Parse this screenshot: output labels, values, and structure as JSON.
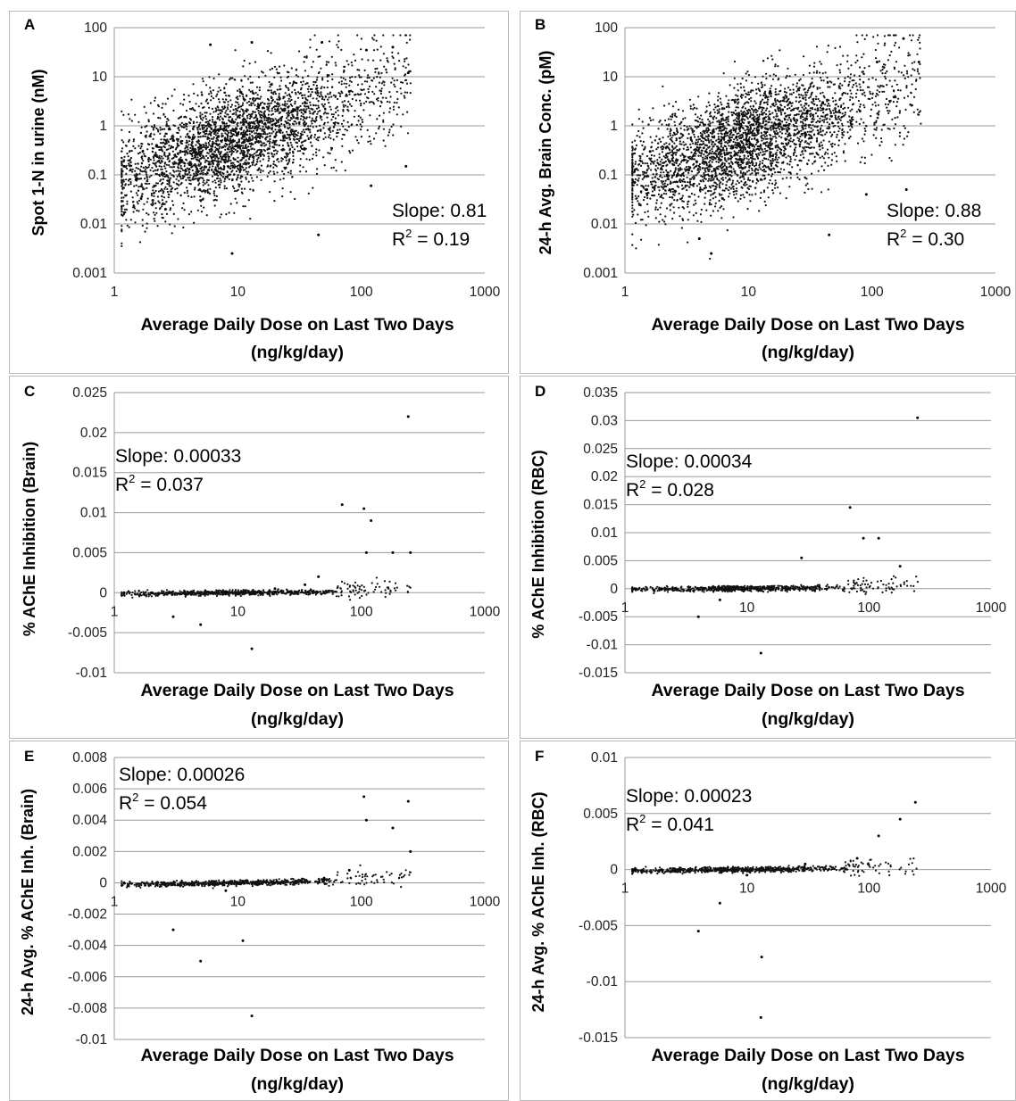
{
  "panels": [
    {
      "letter": "A",
      "ylabel": "Spot 1-N in urine (nM)",
      "xlabel_line1": "Average Daily Dose on Last Two Days",
      "xlabel_line2": "(ng/kg/day)",
      "slope": "Slope: 0.81",
      "r2_prefix": "R",
      "r2_sup": "2",
      "r2_value": " = 0.19",
      "yticks": [
        "100",
        "10",
        "1",
        "0.1",
        "0.01",
        "0.001"
      ],
      "xticks": [
        "1",
        "10",
        "100",
        "1000"
      ]
    },
    {
      "letter": "B",
      "ylabel": "24-h Avg. Brain Conc. (pM)",
      "xlabel_line1": "Average Daily Dose on Last Two Days",
      "xlabel_line2": "(ng/kg/day)",
      "slope": "Slope: 0.88",
      "r2_prefix": "R",
      "r2_sup": "2",
      "r2_value": " = 0.30",
      "yticks": [
        "100",
        "10",
        "1",
        "0.1",
        "0.01",
        "0.001"
      ],
      "xticks": [
        "1",
        "10",
        "100",
        "1000"
      ]
    },
    {
      "letter": "C",
      "ylabel": "% AChE Inhibition (Brain)",
      "xlabel_line1": "Average Daily Dose on Last Two Days",
      "xlabel_line2": "(ng/kg/day)",
      "slope": "Slope: 0.00033",
      "r2_prefix": "R",
      "r2_sup": "2",
      "r2_value": " = 0.037",
      "yticks": [
        "0.025",
        "0.02",
        "0.015",
        "0.01",
        "0.005",
        "0",
        "-0.005",
        "-0.01"
      ],
      "xticks": [
        "1",
        "10",
        "100",
        "1000"
      ]
    },
    {
      "letter": "D",
      "ylabel": "% AChE Inhibition (RBC)",
      "xlabel_line1": "Average Daily Dose on Last Two Days",
      "xlabel_line2": "(ng/kg/day)",
      "slope": "Slope: 0.00034",
      "r2_prefix": "R",
      "r2_sup": "2",
      "r2_value": " = 0.028",
      "yticks": [
        "0.035",
        "0.03",
        "0.025",
        "0.02",
        "0.015",
        "0.01",
        "0.005",
        "0",
        "-0.005",
        "-0.01",
        "-0.015"
      ],
      "xticks": [
        "1",
        "10",
        "100",
        "1000"
      ]
    },
    {
      "letter": "E",
      "ylabel": "24-h Avg. % AChE Inh. (Brain)",
      "xlabel_line1": "Average Daily Dose on Last Two Days",
      "xlabel_line2": "(ng/kg/day)",
      "slope": "Slope: 0.00026",
      "r2_prefix": "R",
      "r2_sup": "2",
      "r2_value": " = 0.054",
      "yticks": [
        "0.008",
        "0.006",
        "0.004",
        "0.002",
        "0",
        "-0.002",
        "-0.004",
        "-0.006",
        "-0.008",
        "-0.01"
      ],
      "xticks": [
        "1",
        "10",
        "100",
        "1000"
      ]
    },
    {
      "letter": "F",
      "ylabel": "24-h Avg. % AChE Inh. (RBC)",
      "xlabel_line1": "Average Daily Dose on Last Two Days",
      "xlabel_line2": "(ng/kg/day)",
      "slope": "Slope: 0.00023",
      "r2_prefix": "R",
      "r2_sup": "2",
      "r2_value": " = 0.041",
      "yticks": [
        "0.01",
        "0.005",
        "0",
        "-0.005",
        "-0.01",
        "-0.015"
      ],
      "xticks": [
        "1",
        "10",
        "100",
        "1000"
      ]
    }
  ],
  "chart_data": [
    {
      "panel": "A",
      "type": "scatter",
      "x_scale": "log",
      "y_scale": "log",
      "xlim": [
        1,
        1000
      ],
      "ylim": [
        0.001,
        100
      ],
      "xlabel": "Average Daily Dose on Last Two Days (ng/kg/day)",
      "ylabel": "Spot 1-N in urine (nM)",
      "grid": "horizontal",
      "slope": 0.81,
      "r2": 0.19,
      "series": [
        {
          "values": [
            {
              "x": 1.2,
              "y": 0.15
            },
            {
              "x": 1.5,
              "y": 0.08
            },
            {
              "x": 1.7,
              "y": 0.3
            },
            {
              "x": 2.2,
              "y": 0.4
            },
            {
              "x": 2.6,
              "y": 0.02
            },
            {
              "x": 3.0,
              "y": 0.5
            },
            {
              "x": 3.5,
              "y": 0.2
            },
            {
              "x": 4,
              "y": 0.6
            },
            {
              "x": 5,
              "y": 0.4
            },
            {
              "x": 6,
              "y": 45
            },
            {
              "x": 7,
              "y": 0.8
            },
            {
              "x": 8,
              "y": 0.5
            },
            {
              "x": 9,
              "y": 0.0025
            },
            {
              "x": 10,
              "y": 0.7
            },
            {
              "x": 12,
              "y": 0.5
            },
            {
              "x": 13,
              "y": 50
            },
            {
              "x": 15,
              "y": 1.2
            },
            {
              "x": 20,
              "y": 0.6
            },
            {
              "x": 28,
              "y": 2
            },
            {
              "x": 35,
              "y": 3
            },
            {
              "x": 45,
              "y": 0.006
            },
            {
              "x": 48,
              "y": 50
            },
            {
              "x": 80,
              "y": 5
            },
            {
              "x": 110,
              "y": 35
            },
            {
              "x": 120,
              "y": 0.06
            },
            {
              "x": 180,
              "y": 40
            },
            {
              "x": 230,
              "y": 0.15
            },
            {
              "x": 240,
              "y": 12
            }
          ]
        }
      ]
    },
    {
      "panel": "B",
      "type": "scatter",
      "x_scale": "log",
      "y_scale": "log",
      "xlim": [
        1,
        1000
      ],
      "ylim": [
        0.001,
        100
      ],
      "xlabel": "Average Daily Dose on Last Two Days (ng/kg/day)",
      "ylabel": "24-h Avg. Brain Conc. (pM)",
      "grid": "horizontal",
      "slope": 0.88,
      "r2": 0.3,
      "series": [
        {
          "values": [
            {
              "x": 1.2,
              "y": 0.07
            },
            {
              "x": 1.5,
              "y": 0.05
            },
            {
              "x": 1.6,
              "y": 0.3
            },
            {
              "x": 2.2,
              "y": 0.1
            },
            {
              "x": 3,
              "y": 0.2
            },
            {
              "x": 4,
              "y": 0.005
            },
            {
              "x": 4.5,
              "y": 0.3
            },
            {
              "x": 5,
              "y": 0.0025
            },
            {
              "x": 6,
              "y": 0.5
            },
            {
              "x": 8,
              "y": 0.6
            },
            {
              "x": 10,
              "y": 0.5
            },
            {
              "x": 12,
              "y": 0.8
            },
            {
              "x": 15,
              "y": 5
            },
            {
              "x": 20,
              "y": 1
            },
            {
              "x": 30,
              "y": 2
            },
            {
              "x": 40,
              "y": 3
            },
            {
              "x": 45,
              "y": 0.006
            },
            {
              "x": 80,
              "y": 2
            },
            {
              "x": 90,
              "y": 0.04
            },
            {
              "x": 110,
              "y": 20
            },
            {
              "x": 180,
              "y": 60
            },
            {
              "x": 190,
              "y": 0.05
            },
            {
              "x": 240,
              "y": 20
            }
          ]
        }
      ]
    },
    {
      "panel": "C",
      "type": "scatter",
      "x_scale": "log",
      "y_scale": "linear",
      "xlim": [
        1,
        1000
      ],
      "ylim": [
        -0.01,
        0.025
      ],
      "xlabel": "Average Daily Dose on Last Two Days (ng/kg/day)",
      "ylabel": "% AChE Inhibition (Brain)",
      "grid": "horizontal",
      "slope": 0.00033,
      "r2": 0.037,
      "series": [
        {
          "values": [
            {
              "x": 1.2,
              "y": 0
            },
            {
              "x": 2,
              "y": 0
            },
            {
              "x": 3,
              "y": -0.003
            },
            {
              "x": 5,
              "y": -0.004
            },
            {
              "x": 8,
              "y": 0
            },
            {
              "x": 13,
              "y": -0.007
            },
            {
              "x": 20,
              "y": 0.0005
            },
            {
              "x": 35,
              "y": 0.001
            },
            {
              "x": 45,
              "y": 0.002
            },
            {
              "x": 70,
              "y": 0.011
            },
            {
              "x": 105,
              "y": 0.0105
            },
            {
              "x": 110,
              "y": 0.005
            },
            {
              "x": 120,
              "y": 0.009
            },
            {
              "x": 180,
              "y": 0.005
            },
            {
              "x": 240,
              "y": 0.022
            },
            {
              "x": 250,
              "y": 0.005
            }
          ]
        }
      ]
    },
    {
      "panel": "D",
      "type": "scatter",
      "x_scale": "log",
      "y_scale": "linear",
      "xlim": [
        1,
        1000
      ],
      "ylim": [
        -0.015,
        0.035
      ],
      "xlabel": "Average Daily Dose on Last Two Days (ng/kg/day)",
      "ylabel": "% AChE Inhibition (RBC)",
      "grid": "horizontal",
      "slope": 0.00034,
      "r2": 0.028,
      "series": [
        {
          "values": [
            {
              "x": 1.2,
              "y": 0
            },
            {
              "x": 2,
              "y": 0
            },
            {
              "x": 4,
              "y": -0.005
            },
            {
              "x": 6,
              "y": -0.002
            },
            {
              "x": 10,
              "y": 0
            },
            {
              "x": 13,
              "y": -0.0115
            },
            {
              "x": 28,
              "y": 0.0055
            },
            {
              "x": 70,
              "y": 0.0145
            },
            {
              "x": 90,
              "y": 0.009
            },
            {
              "x": 120,
              "y": 0.009
            },
            {
              "x": 180,
              "y": 0.004
            },
            {
              "x": 250,
              "y": 0.0305
            }
          ]
        }
      ]
    },
    {
      "panel": "E",
      "type": "scatter",
      "x_scale": "log",
      "y_scale": "linear",
      "xlim": [
        1,
        1000
      ],
      "ylim": [
        -0.01,
        0.008
      ],
      "xlabel": "Average Daily Dose on Last Two Days (ng/kg/day)",
      "ylabel": "24-h Avg. % AChE Inh. (Brain)",
      "grid": "horizontal",
      "slope": 0.00026,
      "r2": 0.054,
      "series": [
        {
          "values": [
            {
              "x": 1.2,
              "y": 0
            },
            {
              "x": 3,
              "y": -0.003
            },
            {
              "x": 5,
              "y": -0.005
            },
            {
              "x": 8,
              "y": -0.0005
            },
            {
              "x": 11,
              "y": -0.0037
            },
            {
              "x": 13,
              "y": -0.0085
            },
            {
              "x": 20,
              "y": 0
            },
            {
              "x": 50,
              "y": 0.0003
            },
            {
              "x": 80,
              "y": 0.0008
            },
            {
              "x": 105,
              "y": 0.0055
            },
            {
              "x": 110,
              "y": 0.004
            },
            {
              "x": 180,
              "y": 0.0035
            },
            {
              "x": 240,
              "y": 0.0052
            },
            {
              "x": 250,
              "y": 0.002
            }
          ]
        }
      ]
    },
    {
      "panel": "F",
      "type": "scatter",
      "x_scale": "log",
      "y_scale": "linear",
      "xlim": [
        1,
        1000
      ],
      "ylim": [
        -0.015,
        0.01
      ],
      "xlabel": "Average Daily Dose on Last Two Days (ng/kg/day)",
      "ylabel": "24-h Avg. % AChE Inh. (RBC)",
      "grid": "horizontal",
      "slope": 0.00023,
      "r2": 0.041,
      "series": [
        {
          "values": [
            {
              "x": 1.2,
              "y": 0
            },
            {
              "x": 2,
              "y": 0
            },
            {
              "x": 4,
              "y": -0.0055
            },
            {
              "x": 6,
              "y": -0.003
            },
            {
              "x": 10,
              "y": -0.0005
            },
            {
              "x": 13,
              "y": -0.0132
            },
            {
              "x": 13.2,
              "y": -0.0078
            },
            {
              "x": 30,
              "y": 0.0005
            },
            {
              "x": 80,
              "y": 0.001
            },
            {
              "x": 120,
              "y": 0.003
            },
            {
              "x": 180,
              "y": 0.0045
            },
            {
              "x": 240,
              "y": 0.006
            }
          ]
        }
      ]
    }
  ]
}
